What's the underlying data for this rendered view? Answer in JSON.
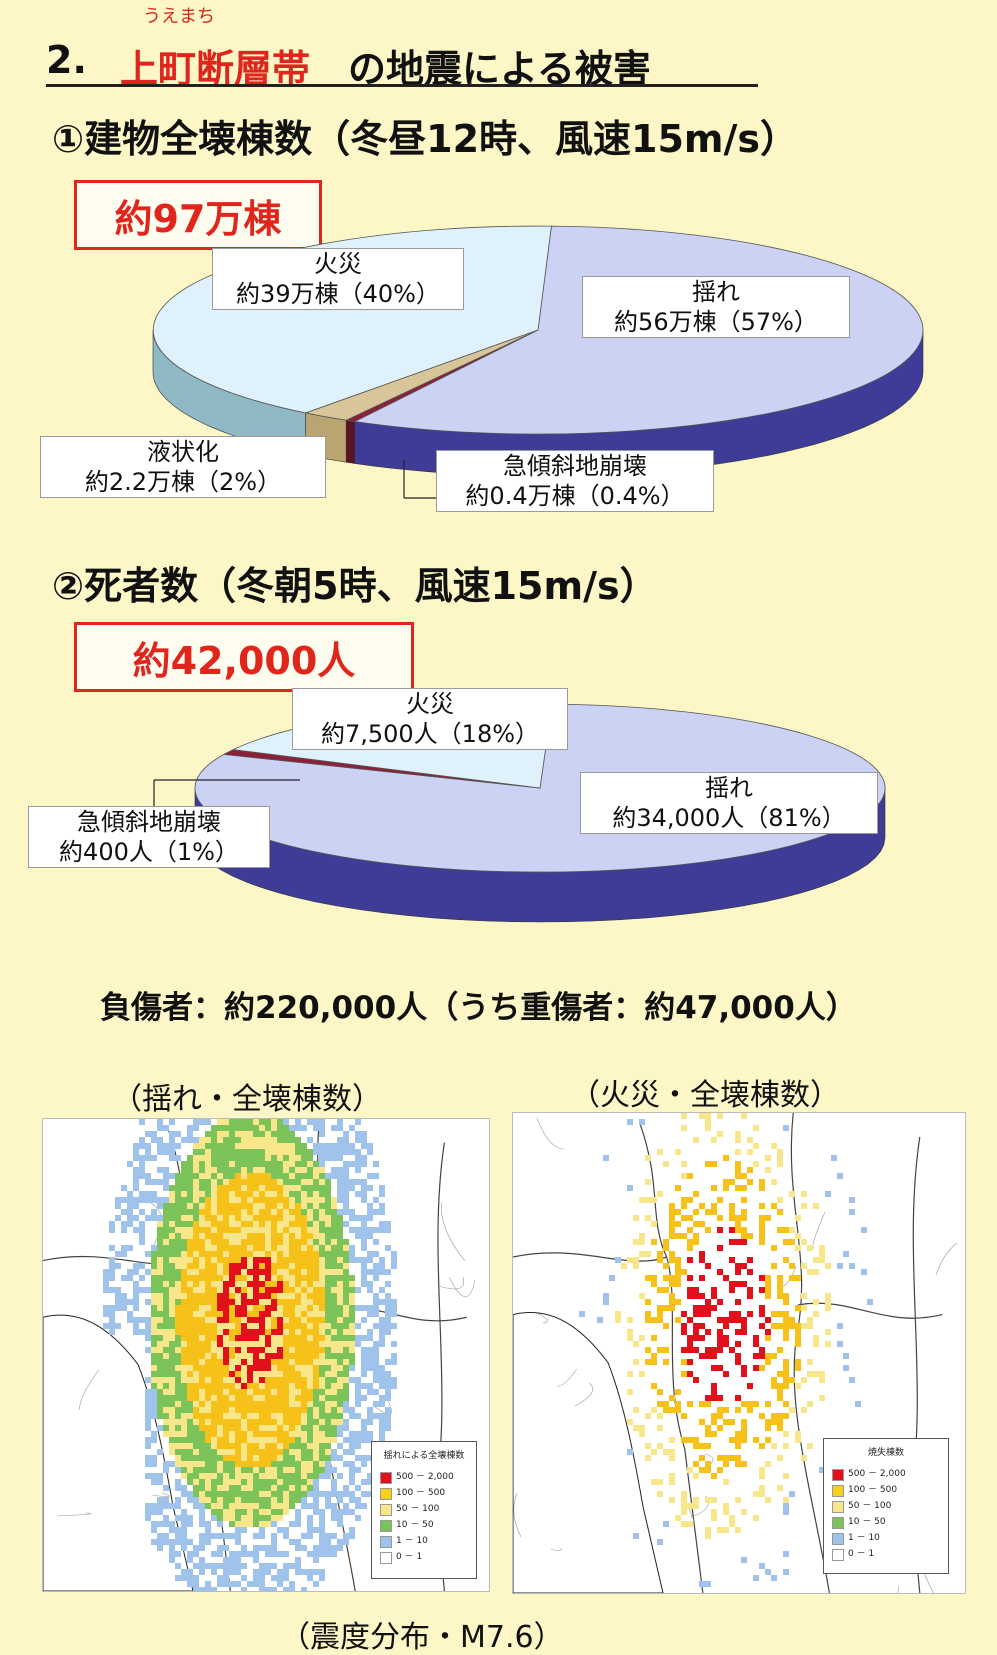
{
  "header": {
    "ruby": "うえまち",
    "number": "2.",
    "highlight": "上町断層帯",
    "rest": "の地震による被害"
  },
  "colors": {
    "page_bg": "#fdf6c6",
    "accent_red": "#e0261c",
    "shake_top": "#cbd2f4",
    "shake_side": "#3e3c96",
    "fire_top": "#dff1fb",
    "fire_side": "#8fb9c5",
    "liquefaction": "#d8c69a",
    "landslide": "#8d1f3a"
  },
  "chart_data": [
    {
      "type": "pie",
      "title": "①建物全壊棟数（冬昼12時、風速15m/s）",
      "total": "約97万棟",
      "slices": [
        {
          "name": "揺れ",
          "value": 57,
          "text": "約56万棟（57%）",
          "color": "#cbd2f4"
        },
        {
          "name": "火災",
          "value": 40,
          "text": "約39万棟（40%）",
          "color": "#dff1fb"
        },
        {
          "name": "液状化",
          "value": 2,
          "text": "約2.2万棟（2%）",
          "color": "#d8c69a"
        },
        {
          "name": "急傾斜地崩壊",
          "value": 0.4,
          "text": "約0.4万棟（0.4%）",
          "color": "#8d1f3a"
        }
      ]
    },
    {
      "type": "pie",
      "title": "②死者数（冬朝5時、風速15m/s）",
      "total": "約42,000人",
      "slices": [
        {
          "name": "揺れ",
          "value": 81,
          "text": "約34,000人（81%）",
          "color": "#cbd2f4"
        },
        {
          "name": "火災",
          "value": 18,
          "text": "約7,500人（18%）",
          "color": "#dff1fb"
        },
        {
          "name": "急傾斜地崩壊",
          "value": 1,
          "text": "約400人（1%）",
          "color": "#8d1f3a"
        }
      ]
    }
  ],
  "injured": "負傷者：約220,000人（うち重傷者：約47,000人）",
  "maps": {
    "left": {
      "caption": "（揺れ・全壊棟数）",
      "legend_title": "揺れによる全壊棟数",
      "legend": [
        {
          "range": "500 － 2,000",
          "color": "#e2101a"
        },
        {
          "range": "100 － 500",
          "color": "#f6d11a"
        },
        {
          "range": "50 － 100",
          "color": "#f7e68a"
        },
        {
          "range": "10 － 50",
          "color": "#7cc35a"
        },
        {
          "range": "1 － 10",
          "color": "#9fc3ea"
        },
        {
          "range": "0 － 1",
          "color": "#ffffff"
        }
      ]
    },
    "right": {
      "caption": "（火災・全壊棟数）",
      "legend_title": "焼失棟数",
      "legend": [
        {
          "range": "500 － 2,000",
          "color": "#e2101a"
        },
        {
          "range": "100 － 500",
          "color": "#f6d11a"
        },
        {
          "range": "50 － 100",
          "color": "#f7e68a"
        },
        {
          "range": "10 － 50",
          "color": "#7cc35a"
        },
        {
          "range": "1 － 10",
          "color": "#9fc3ea"
        },
        {
          "range": "0 － 1",
          "color": "#ffffff"
        }
      ]
    },
    "caption_bottom": "（震度分布・M7.6）"
  }
}
